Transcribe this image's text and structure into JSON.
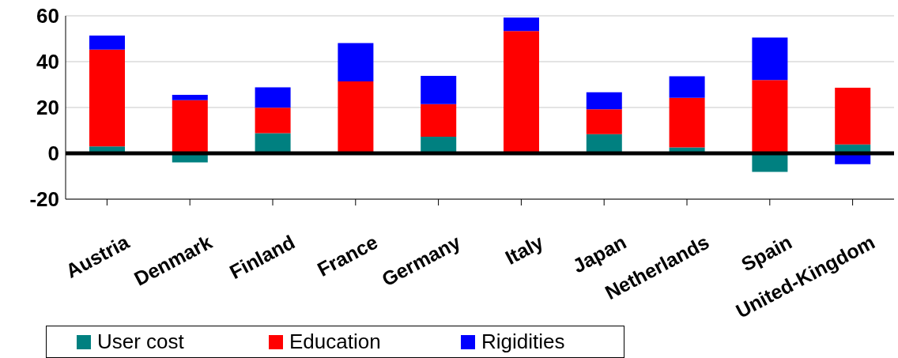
{
  "chart_data": {
    "type": "bar",
    "stacked": true,
    "categories": [
      "Austria",
      "Denmark",
      "Finland",
      "France",
      "Germany",
      "Italy",
      "Japan",
      "Netherlands",
      "Spain",
      "United-Kingdom"
    ],
    "series": [
      {
        "name": "User cost",
        "color": "#008080",
        "values": [
          3,
          -4,
          8.8,
          0,
          7.2,
          0,
          8.4,
          2.6,
          -8.1,
          3.9
        ]
      },
      {
        "name": "Education",
        "color": "#ff0000",
        "values": [
          42.3,
          23.2,
          11.1,
          31.4,
          14.3,
          53.4,
          10.8,
          21.6,
          32,
          24.7
        ]
      },
      {
        "name": "Rigidities",
        "color": "#0000ff",
        "values": [
          6.1,
          2.3,
          8.9,
          16.7,
          12.3,
          5.8,
          7.4,
          9.4,
          18.5,
          -4.7
        ]
      }
    ],
    "ylim": [
      -20,
      60
    ],
    "yticks": [
      -20,
      0,
      20,
      40,
      60
    ],
    "grid": "y",
    "legend": "bottom",
    "ref_lines": [
      {
        "axis": "y",
        "value": 0,
        "color": "#000000"
      }
    ]
  }
}
